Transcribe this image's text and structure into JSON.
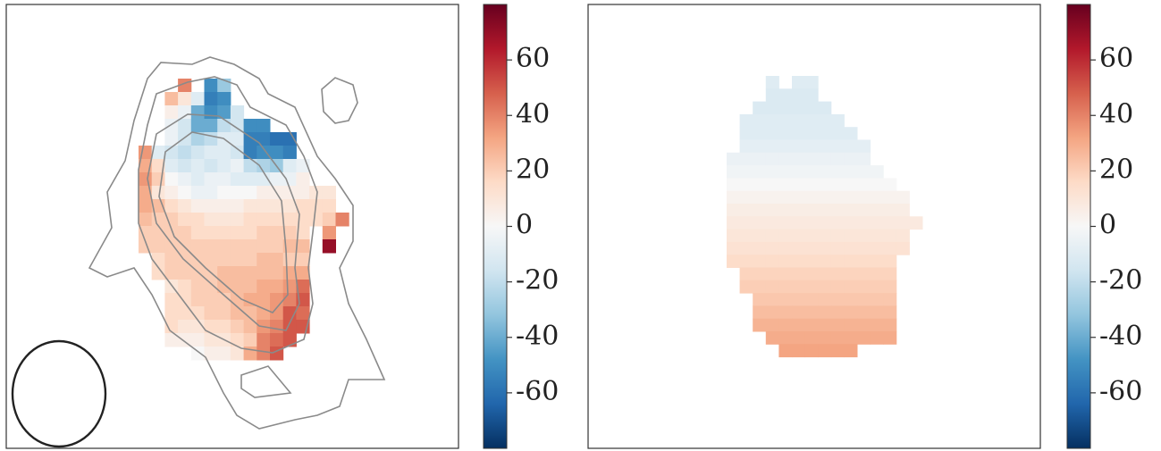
{
  "chart_data": [
    {
      "type": "heatmap",
      "colormap": "RdBu_r",
      "clim": [
        -80,
        80
      ],
      "cticks": [
        -60,
        -40,
        -20,
        0,
        20,
        40,
        60
      ],
      "values": [
        [
          null,
          null,
          null,
          40,
          null,
          -50,
          -30,
          null,
          null,
          null,
          null,
          null,
          null,
          null,
          null,
          null
        ],
        [
          null,
          null,
          25,
          10,
          -10,
          -55,
          -50,
          null,
          null,
          null,
          null,
          null,
          null,
          null,
          null,
          null
        ],
        [
          null,
          null,
          5,
          -5,
          -40,
          -50,
          -45,
          -15,
          null,
          null,
          null,
          null,
          null,
          null,
          null,
          null
        ],
        [
          null,
          null,
          -5,
          -15,
          -40,
          -40,
          -20,
          -15,
          -50,
          -50,
          null,
          null,
          null,
          null,
          null,
          null
        ],
        [
          null,
          null,
          -5,
          -15,
          -25,
          -20,
          -10,
          -10,
          -55,
          -55,
          -60,
          -60,
          null,
          null,
          null,
          null
        ],
        [
          35,
          -10,
          -15,
          -20,
          -15,
          -10,
          -10,
          -15,
          -55,
          -50,
          -50,
          -55,
          null,
          null,
          null,
          null
        ],
        [
          30,
          15,
          -10,
          -15,
          -10,
          -15,
          -10,
          -5,
          -20,
          -25,
          -30,
          -10,
          -5,
          null,
          null,
          null
        ],
        [
          35,
          20,
          0,
          -5,
          -10,
          -5,
          -5,
          -10,
          -10,
          -10,
          -5,
          -5,
          5,
          null,
          null,
          null
        ],
        [
          30,
          10,
          5,
          0,
          -5,
          -5,
          0,
          0,
          0,
          5,
          5,
          5,
          5,
          10,
          10,
          null
        ],
        [
          30,
          25,
          15,
          10,
          5,
          5,
          5,
          5,
          10,
          10,
          10,
          10,
          15,
          15,
          15,
          null
        ],
        [
          25,
          20,
          20,
          15,
          15,
          10,
          10,
          10,
          15,
          15,
          15,
          15,
          15,
          15,
          20,
          40
        ],
        [
          20,
          20,
          20,
          20,
          15,
          15,
          15,
          15,
          15,
          20,
          20,
          20,
          15,
          null,
          35,
          null
        ],
        [
          20,
          20,
          20,
          20,
          20,
          20,
          20,
          20,
          20,
          20,
          20,
          25,
          25,
          null,
          70,
          null
        ],
        [
          null,
          15,
          20,
          20,
          20,
          20,
          20,
          20,
          20,
          25,
          25,
          20,
          20,
          null,
          null,
          null
        ],
        [
          null,
          15,
          20,
          20,
          20,
          20,
          25,
          25,
          25,
          25,
          25,
          30,
          30,
          null,
          null,
          null
        ],
        [
          null,
          null,
          10,
          15,
          20,
          20,
          25,
          25,
          25,
          30,
          30,
          35,
          45,
          null,
          null,
          null
        ],
        [
          null,
          null,
          15,
          15,
          20,
          20,
          20,
          25,
          30,
          30,
          35,
          40,
          50,
          null,
          null,
          null
        ],
        [
          null,
          null,
          15,
          15,
          15,
          20,
          20,
          25,
          25,
          30,
          35,
          50,
          45,
          null,
          null,
          null
        ],
        [
          null,
          null,
          15,
          10,
          10,
          15,
          15,
          20,
          25,
          35,
          40,
          50,
          50,
          null,
          null,
          null
        ],
        [
          null,
          null,
          5,
          5,
          5,
          10,
          10,
          15,
          20,
          40,
          45,
          50,
          null,
          null,
          null,
          null
        ],
        [
          null,
          null,
          null,
          null,
          0,
          5,
          5,
          10,
          30,
          40,
          50,
          null,
          null,
          null,
          null,
          null
        ]
      ]
    },
    {
      "type": "heatmap",
      "colormap": "RdBu_r",
      "clim": [
        -80,
        80
      ],
      "cticks": [
        -60,
        -40,
        -20,
        0,
        20,
        40,
        60
      ],
      "values": [
        [
          null,
          null,
          null,
          -10,
          null,
          -10,
          -10,
          null,
          null,
          null,
          null,
          null,
          null,
          null,
          null
        ],
        [
          null,
          null,
          null,
          -12,
          -12,
          -12,
          -12,
          null,
          null,
          null,
          null,
          null,
          null,
          null,
          null
        ],
        [
          null,
          null,
          -12,
          -12,
          -12,
          -12,
          -12,
          -12,
          null,
          null,
          null,
          null,
          null,
          null,
          null
        ],
        [
          null,
          -10,
          -10,
          -10,
          -10,
          -10,
          -10,
          -10,
          -10,
          null,
          null,
          null,
          null,
          null,
          null
        ],
        [
          null,
          -10,
          -10,
          -10,
          -10,
          -10,
          -10,
          -10,
          -10,
          -10,
          null,
          null,
          null,
          null,
          null
        ],
        [
          null,
          -8,
          -8,
          -8,
          -8,
          -8,
          -8,
          -8,
          -8,
          -8,
          -8,
          null,
          null,
          null,
          null
        ],
        [
          -5,
          -5,
          -5,
          -5,
          -5,
          -5,
          -5,
          -5,
          -5,
          -5,
          -5,
          null,
          null,
          null,
          null
        ],
        [
          -3,
          -3,
          -3,
          -3,
          -3,
          -3,
          -3,
          -3,
          -3,
          -3,
          -3,
          -3,
          null,
          null,
          null
        ],
        [
          0,
          0,
          0,
          0,
          0,
          0,
          0,
          0,
          0,
          0,
          0,
          0,
          0,
          null,
          null
        ],
        [
          3,
          3,
          3,
          3,
          3,
          3,
          3,
          3,
          3,
          3,
          3,
          3,
          3,
          3,
          null
        ],
        [
          6,
          6,
          6,
          6,
          6,
          6,
          6,
          6,
          6,
          6,
          6,
          6,
          6,
          6,
          null
        ],
        [
          8,
          8,
          8,
          8,
          8,
          8,
          8,
          8,
          8,
          8,
          8,
          8,
          8,
          8,
          8
        ],
        [
          10,
          10,
          10,
          10,
          10,
          10,
          10,
          10,
          10,
          10,
          10,
          10,
          10,
          10,
          null
        ],
        [
          12,
          12,
          12,
          12,
          12,
          12,
          12,
          12,
          12,
          12,
          12,
          12,
          12,
          12,
          null
        ],
        [
          15,
          15,
          15,
          15,
          15,
          15,
          15,
          15,
          15,
          15,
          15,
          15,
          15,
          null,
          null
        ],
        [
          null,
          18,
          18,
          18,
          18,
          18,
          18,
          18,
          18,
          18,
          18,
          18,
          18,
          null,
          null
        ],
        [
          null,
          20,
          20,
          20,
          20,
          20,
          20,
          20,
          20,
          20,
          20,
          20,
          20,
          null,
          null
        ],
        [
          null,
          null,
          22,
          22,
          22,
          22,
          22,
          22,
          22,
          22,
          22,
          22,
          22,
          null,
          null
        ],
        [
          null,
          null,
          25,
          25,
          25,
          25,
          25,
          25,
          25,
          25,
          25,
          25,
          25,
          null,
          null
        ],
        [
          null,
          null,
          28,
          28,
          28,
          28,
          28,
          28,
          28,
          28,
          28,
          28,
          28,
          null,
          null
        ],
        [
          null,
          null,
          null,
          30,
          30,
          30,
          30,
          30,
          30,
          30,
          30,
          30,
          30,
          null,
          null
        ],
        [
          null,
          null,
          null,
          null,
          32,
          32,
          32,
          32,
          32,
          32,
          null,
          null,
          null,
          null,
          null
        ]
      ]
    }
  ]
}
